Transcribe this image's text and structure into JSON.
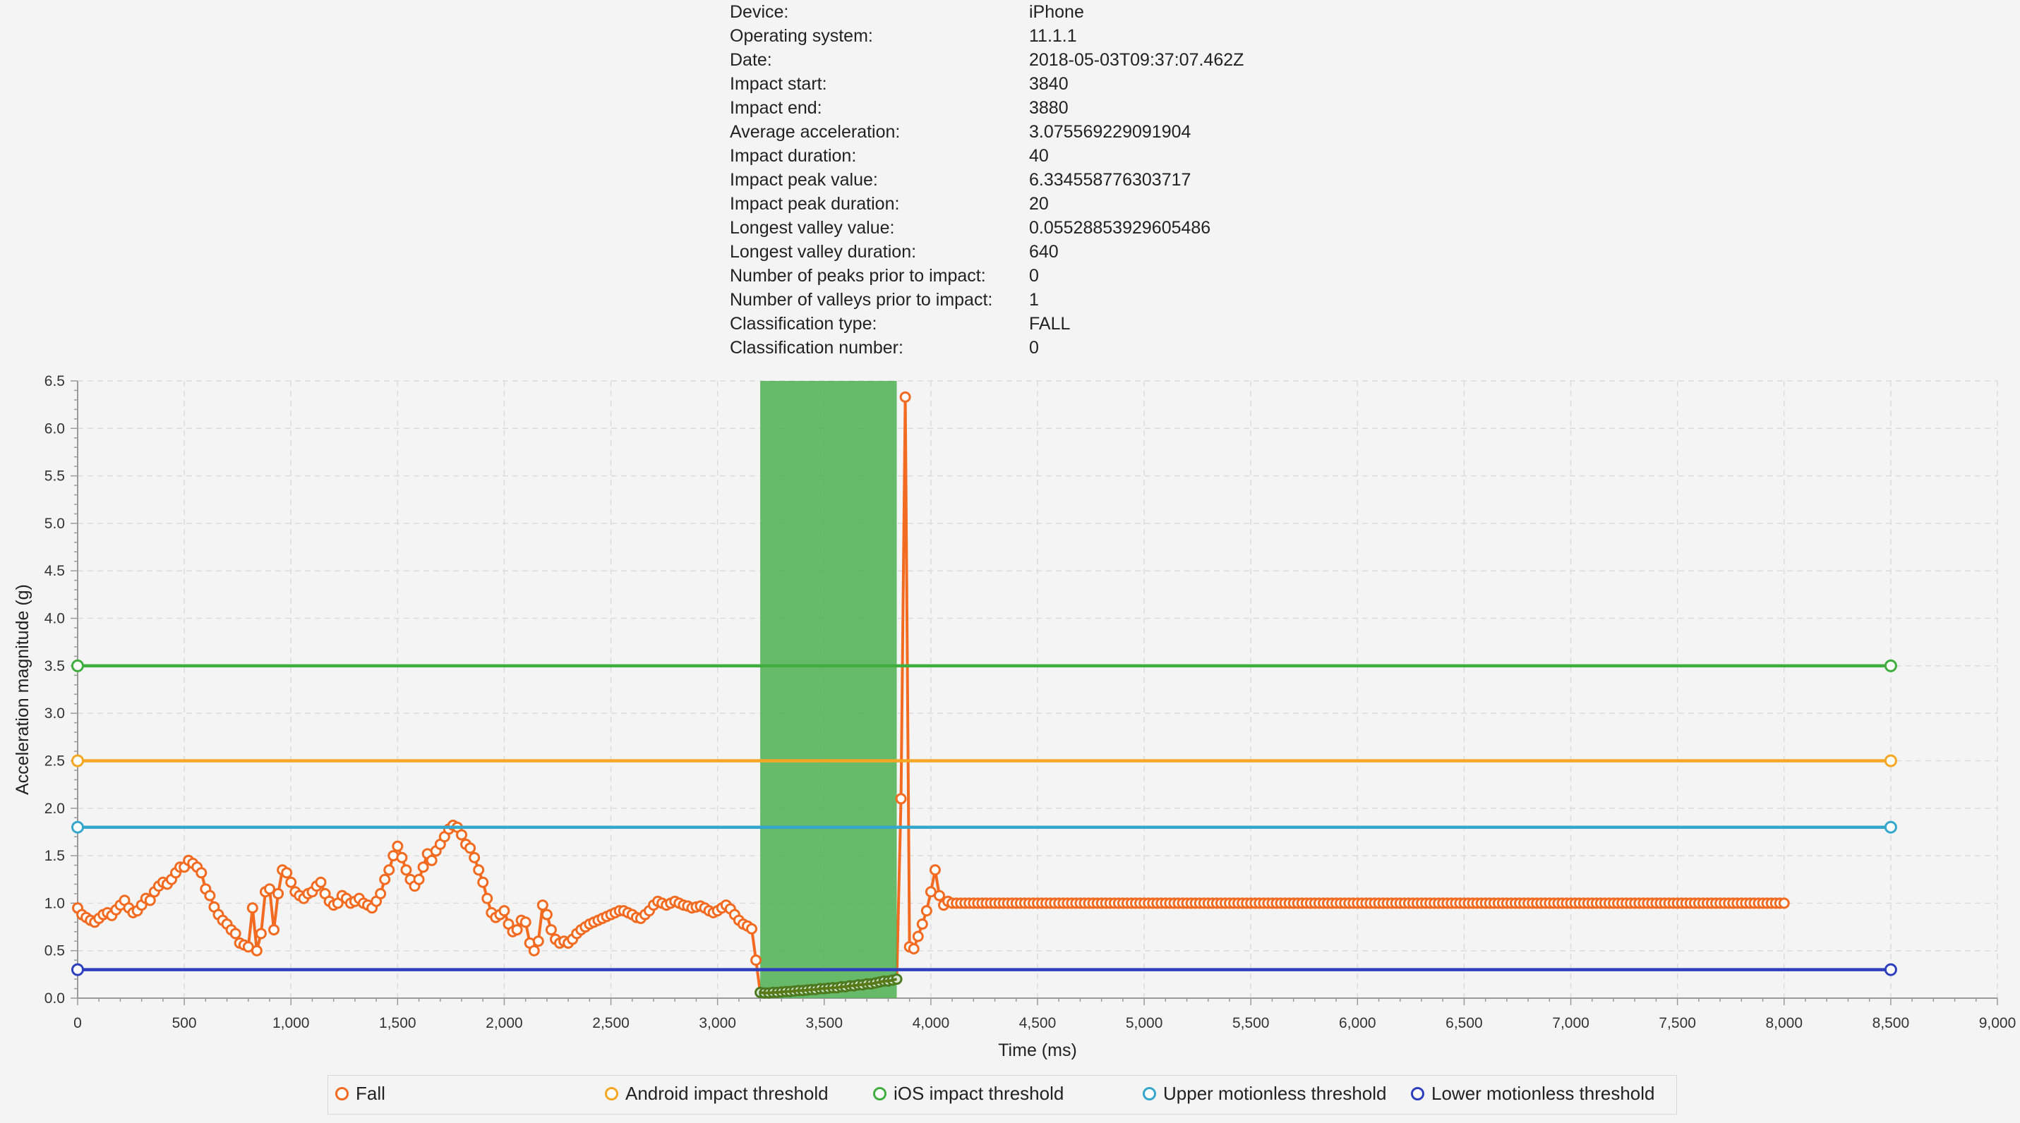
{
  "info": [
    {
      "label": "Device:",
      "value": "iPhone"
    },
    {
      "label": "Operating system:",
      "value": "11.1.1"
    },
    {
      "label": "Date:",
      "value": "2018-05-03T09:37:07.462Z"
    },
    {
      "label": "Impact start:",
      "value": "3840"
    },
    {
      "label": "Impact end:",
      "value": "3880"
    },
    {
      "label": "Average acceleration:",
      "value": "3.075569229091904"
    },
    {
      "label": "Impact duration:",
      "value": "40"
    },
    {
      "label": "Impact peak value:",
      "value": "6.334558776303717"
    },
    {
      "label": "Impact peak duration:",
      "value": "20"
    },
    {
      "label": "Longest valley value:",
      "value": "0.05528853929605486"
    },
    {
      "label": "Longest valley duration:",
      "value": "640"
    },
    {
      "label": "Number of peaks prior to impact:",
      "value": "0"
    },
    {
      "label": "Number of valleys prior to impact:",
      "value": "1"
    },
    {
      "label": "Classification type:",
      "value": "FALL"
    },
    {
      "label": "Classification number:",
      "value": "0"
    }
  ],
  "chart_data": {
    "type": "line",
    "xlabel": "Time (ms)",
    "ylabel": "Acceleration magnitude (g)",
    "xlim": [
      0,
      9000
    ],
    "ylim": [
      0,
      6.5
    ],
    "xticks": [
      "0",
      "500",
      "1,000",
      "1,500",
      "2,000",
      "2,500",
      "3,000",
      "3,500",
      "4,000",
      "4,500",
      "5,000",
      "5,500",
      "6,000",
      "6,500",
      "7,000",
      "7,500",
      "8,000",
      "8,500",
      "9,000"
    ],
    "yticks": [
      "0.0",
      "0.5",
      "1.0",
      "1.5",
      "2.0",
      "2.5",
      "3.0",
      "3.5",
      "4.0",
      "4.5",
      "5.0",
      "5.5",
      "6.0",
      "6.5"
    ],
    "grid": true,
    "legend_position": "bottom",
    "highlight_region": {
      "x_start": 3200,
      "x_end": 3840,
      "color": "#4caf50"
    },
    "series": [
      {
        "name": "Fall",
        "color": "#f26b21",
        "anchors": [
          [
            0,
            0.95
          ],
          [
            20,
            0.88
          ],
          [
            40,
            0.85
          ],
          [
            60,
            0.82
          ],
          [
            80,
            0.8
          ],
          [
            100,
            0.84
          ],
          [
            120,
            0.88
          ],
          [
            140,
            0.9
          ],
          [
            160,
            0.87
          ],
          [
            180,
            0.93
          ],
          [
            200,
            0.98
          ],
          [
            220,
            1.03
          ],
          [
            240,
            0.95
          ],
          [
            260,
            0.9
          ],
          [
            280,
            0.92
          ],
          [
            300,
            0.98
          ],
          [
            320,
            1.05
          ],
          [
            340,
            1.03
          ],
          [
            360,
            1.12
          ],
          [
            380,
            1.18
          ],
          [
            400,
            1.22
          ],
          [
            420,
            1.2
          ],
          [
            440,
            1.25
          ],
          [
            460,
            1.32
          ],
          [
            480,
            1.38
          ],
          [
            500,
            1.38
          ],
          [
            520,
            1.45
          ],
          [
            540,
            1.42
          ],
          [
            560,
            1.38
          ],
          [
            580,
            1.32
          ],
          [
            600,
            1.15
          ],
          [
            620,
            1.08
          ],
          [
            640,
            0.96
          ],
          [
            660,
            0.88
          ],
          [
            680,
            0.82
          ],
          [
            700,
            0.78
          ],
          [
            720,
            0.72
          ],
          [
            740,
            0.68
          ],
          [
            760,
            0.58
          ],
          [
            780,
            0.56
          ],
          [
            800,
            0.54
          ],
          [
            820,
            0.95
          ],
          [
            840,
            0.5
          ],
          [
            860,
            0.68
          ],
          [
            880,
            1.12
          ],
          [
            900,
            1.15
          ],
          [
            920,
            0.72
          ],
          [
            940,
            1.1
          ],
          [
            960,
            1.35
          ],
          [
            980,
            1.32
          ],
          [
            1000,
            1.22
          ],
          [
            1020,
            1.12
          ],
          [
            1040,
            1.08
          ],
          [
            1060,
            1.05
          ],
          [
            1080,
            1.1
          ],
          [
            1100,
            1.12
          ],
          [
            1120,
            1.18
          ],
          [
            1140,
            1.22
          ],
          [
            1160,
            1.1
          ],
          [
            1180,
            1.02
          ],
          [
            1200,
            0.98
          ],
          [
            1220,
            1.0
          ],
          [
            1240,
            1.08
          ],
          [
            1260,
            1.05
          ],
          [
            1280,
            1.0
          ],
          [
            1300,
            1.02
          ],
          [
            1320,
            1.05
          ],
          [
            1340,
            1.0
          ],
          [
            1360,
            0.98
          ],
          [
            1380,
            0.95
          ],
          [
            1400,
            1.02
          ],
          [
            1420,
            1.1
          ],
          [
            1440,
            1.25
          ],
          [
            1460,
            1.35
          ],
          [
            1480,
            1.5
          ],
          [
            1500,
            1.6
          ],
          [
            1520,
            1.48
          ],
          [
            1540,
            1.35
          ],
          [
            1560,
            1.25
          ],
          [
            1580,
            1.18
          ],
          [
            1600,
            1.25
          ],
          [
            1620,
            1.38
          ],
          [
            1640,
            1.52
          ],
          [
            1660,
            1.45
          ],
          [
            1680,
            1.55
          ],
          [
            1700,
            1.62
          ],
          [
            1720,
            1.7
          ],
          [
            1740,
            1.78
          ],
          [
            1760,
            1.82
          ],
          [
            1780,
            1.8
          ],
          [
            1800,
            1.72
          ],
          [
            1820,
            1.62
          ],
          [
            1840,
            1.58
          ],
          [
            1860,
            1.48
          ],
          [
            1880,
            1.35
          ],
          [
            1900,
            1.22
          ],
          [
            1920,
            1.05
          ],
          [
            1940,
            0.9
          ],
          [
            1960,
            0.85
          ],
          [
            1980,
            0.88
          ],
          [
            2000,
            0.92
          ],
          [
            2020,
            0.78
          ],
          [
            2040,
            0.7
          ],
          [
            2060,
            0.72
          ],
          [
            2080,
            0.82
          ],
          [
            2100,
            0.8
          ],
          [
            2120,
            0.58
          ],
          [
            2140,
            0.5
          ],
          [
            2160,
            0.6
          ],
          [
            2180,
            0.98
          ],
          [
            2200,
            0.88
          ],
          [
            2220,
            0.72
          ],
          [
            2240,
            0.62
          ],
          [
            2260,
            0.58
          ],
          [
            2280,
            0.6
          ],
          [
            2300,
            0.58
          ],
          [
            2320,
            0.62
          ],
          [
            2340,
            0.68
          ],
          [
            2360,
            0.72
          ],
          [
            2380,
            0.75
          ],
          [
            2400,
            0.78
          ],
          [
            2420,
            0.8
          ],
          [
            2440,
            0.82
          ],
          [
            2460,
            0.84
          ],
          [
            2480,
            0.86
          ],
          [
            2500,
            0.88
          ],
          [
            2520,
            0.9
          ],
          [
            2540,
            0.92
          ],
          [
            2560,
            0.92
          ],
          [
            2580,
            0.9
          ],
          [
            2600,
            0.88
          ],
          [
            2620,
            0.85
          ],
          [
            2640,
            0.84
          ],
          [
            2660,
            0.88
          ],
          [
            2680,
            0.92
          ],
          [
            2700,
            0.98
          ],
          [
            2720,
            1.02
          ],
          [
            2740,
            1.0
          ],
          [
            2760,
            0.98
          ],
          [
            2780,
            1.0
          ],
          [
            2800,
            1.02
          ],
          [
            2820,
            1.0
          ],
          [
            2840,
            0.98
          ],
          [
            2860,
            0.97
          ],
          [
            2880,
            0.95
          ],
          [
            2900,
            0.96
          ],
          [
            2920,
            0.97
          ],
          [
            2940,
            0.95
          ],
          [
            2960,
            0.92
          ],
          [
            2980,
            0.9
          ],
          [
            3000,
            0.92
          ],
          [
            3020,
            0.95
          ],
          [
            3040,
            0.98
          ],
          [
            3060,
            0.94
          ],
          [
            3080,
            0.88
          ],
          [
            3100,
            0.82
          ],
          [
            3120,
            0.78
          ],
          [
            3140,
            0.76
          ],
          [
            3160,
            0.73
          ],
          [
            3180,
            0.4
          ],
          [
            3200,
            0.06
          ],
          [
            3220,
            0.055
          ],
          [
            3240,
            0.055
          ],
          [
            3260,
            0.06
          ],
          [
            3280,
            0.06
          ],
          [
            3300,
            0.065
          ],
          [
            3320,
            0.07
          ],
          [
            3340,
            0.07
          ],
          [
            3360,
            0.075
          ],
          [
            3380,
            0.08
          ],
          [
            3400,
            0.08
          ],
          [
            3420,
            0.085
          ],
          [
            3440,
            0.09
          ],
          [
            3460,
            0.09
          ],
          [
            3480,
            0.1
          ],
          [
            3500,
            0.1
          ],
          [
            3520,
            0.105
          ],
          [
            3540,
            0.11
          ],
          [
            3560,
            0.11
          ],
          [
            3580,
            0.12
          ],
          [
            3600,
            0.12
          ],
          [
            3620,
            0.13
          ],
          [
            3640,
            0.13
          ],
          [
            3660,
            0.14
          ],
          [
            3680,
            0.14
          ],
          [
            3700,
            0.15
          ],
          [
            3720,
            0.15
          ],
          [
            3740,
            0.16
          ],
          [
            3760,
            0.17
          ],
          [
            3780,
            0.18
          ],
          [
            3800,
            0.18
          ],
          [
            3820,
            0.19
          ],
          [
            3840,
            0.2
          ],
          [
            3860,
            2.1
          ],
          [
            3880,
            6.33
          ],
          [
            3900,
            0.54
          ],
          [
            3920,
            0.52
          ],
          [
            3940,
            0.65
          ],
          [
            3960,
            0.78
          ],
          [
            3980,
            0.92
          ],
          [
            4000,
            1.12
          ],
          [
            4020,
            1.35
          ],
          [
            4040,
            1.08
          ],
          [
            4060,
            0.98
          ],
          [
            4080,
            1.02
          ],
          [
            4100,
            1.0
          ],
          [
            8000,
            1.0
          ]
        ]
      },
      {
        "name": "Android impact threshold",
        "color": "#f5a623",
        "x": [
          0,
          8500
        ],
        "y": [
          2.5,
          2.5
        ]
      },
      {
        "name": "iOS impact threshold",
        "color": "#3fae3f",
        "x": [
          0,
          8500
        ],
        "y": [
          3.5,
          3.5
        ]
      },
      {
        "name": "Upper motionless threshold",
        "color": "#35a6cc",
        "x": [
          0,
          8500
        ],
        "y": [
          1.8,
          1.8
        ]
      },
      {
        "name": "Lower motionless threshold",
        "color": "#2d3fbe",
        "x": [
          0,
          8500
        ],
        "y": [
          0.3,
          0.3
        ]
      }
    ]
  }
}
